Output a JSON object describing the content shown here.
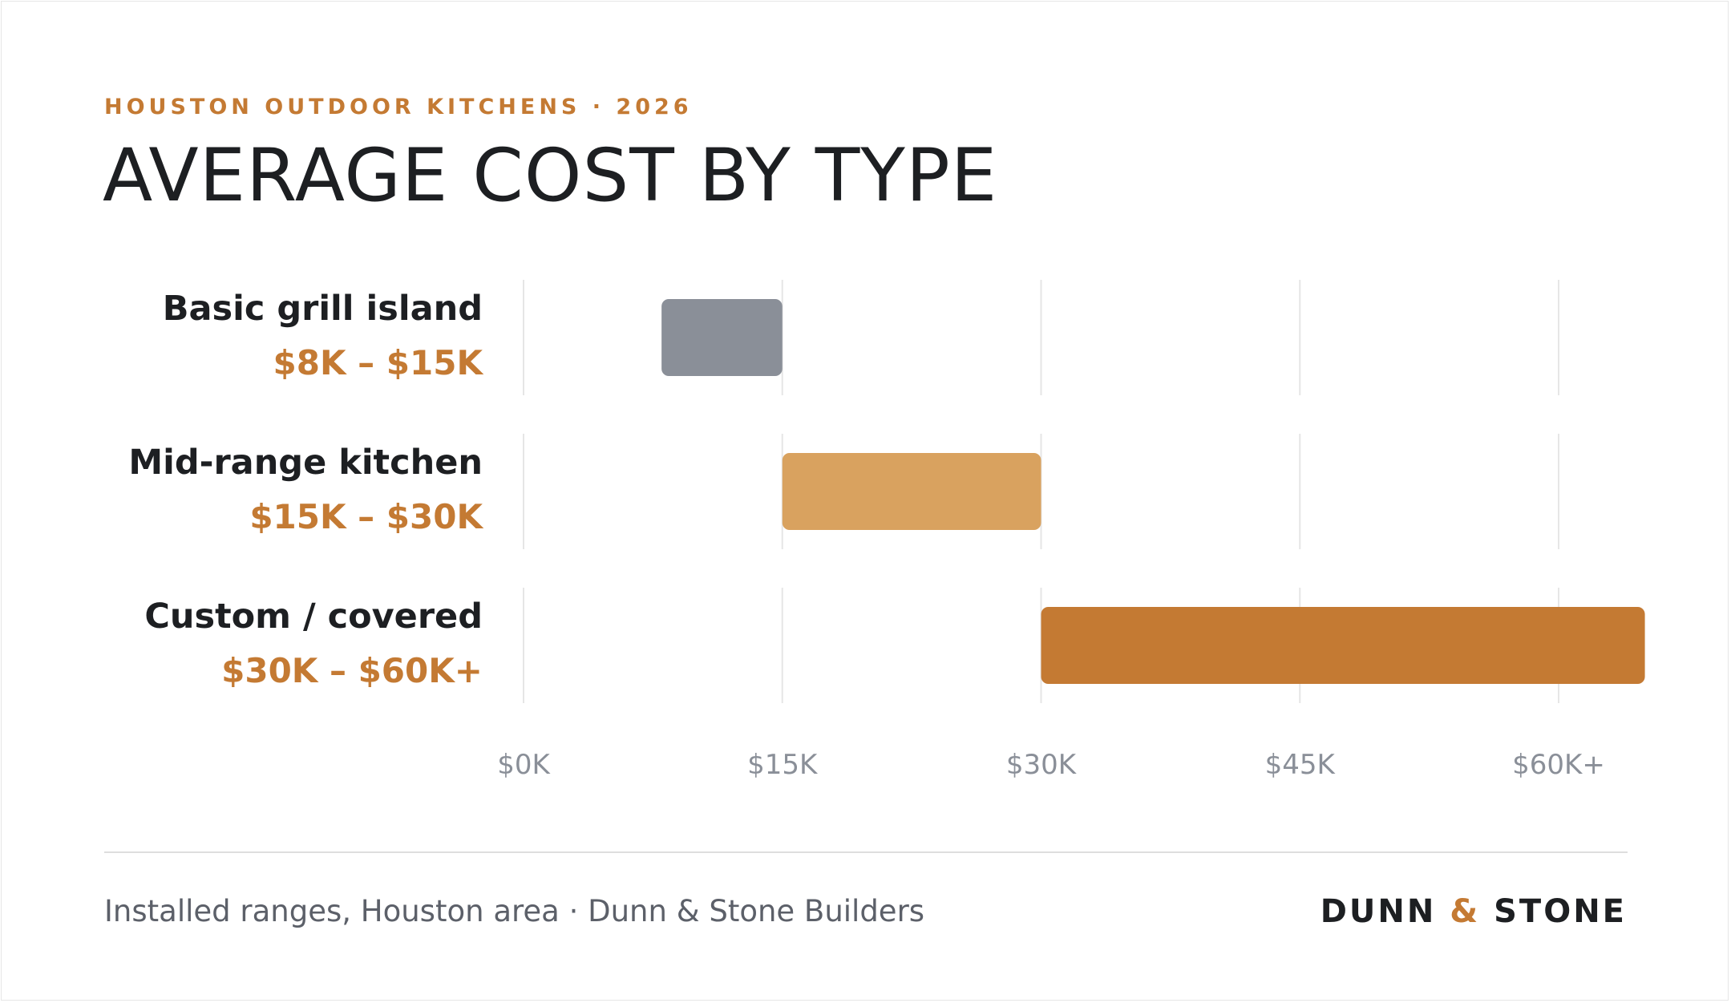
{
  "header": {
    "eyebrow": "HOUSTON OUTDOOR KITCHENS · 2026",
    "title": "AVERAGE COST BY TYPE"
  },
  "chart_data": {
    "type": "bar",
    "orientation": "horizontal-range",
    "categories": [
      "Basic grill island",
      "Mid-range kitchen",
      "Custom / covered"
    ],
    "range_labels": [
      "$8K – $15K",
      "$15K – $30K",
      "$30K – $60K+"
    ],
    "ranges": [
      [
        8,
        15
      ],
      [
        15,
        30
      ],
      [
        30,
        65
      ]
    ],
    "unit": "$K",
    "xlim": [
      0,
      60
    ],
    "x_ticks": [
      0,
      15,
      30,
      45,
      60
    ],
    "x_tick_labels": [
      "$0K",
      "$15K",
      "$30K",
      "$45K",
      "$60K+"
    ],
    "grid": true,
    "colors": [
      "#8a8f98",
      "#d9a25f",
      "#c47a33"
    ],
    "title": "AVERAGE COST BY TYPE",
    "xlabel": "",
    "ylabel": ""
  },
  "footer": {
    "source": "Installed ranges, Houston area · Dunn & Stone Builders",
    "brand_left": "DUNN",
    "brand_amp": "&",
    "brand_right": "STONE"
  },
  "colors": {
    "accent": "#c47a33",
    "text": "#1d1f22",
    "muted": "#8a8f98"
  }
}
